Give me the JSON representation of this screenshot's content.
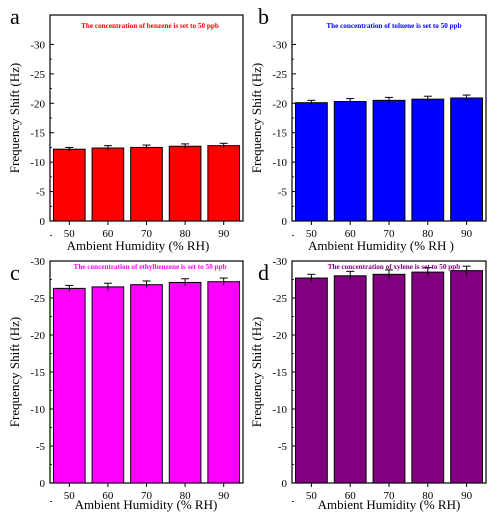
{
  "figure": {
    "panels": [
      {
        "letter": "a",
        "annotation": "The concentration of benzene is set to 50 ppb",
        "color": "#ff0000"
      },
      {
        "letter": "b",
        "annotation": "The concentration of toluene is set to 50 ppb",
        "color": "#0000ff"
      },
      {
        "letter": "c",
        "annotation": "The concentration of ethylbenzene is set to 50 ppb",
        "color": "#ff00ff"
      },
      {
        "letter": "d",
        "annotation": "The concentration of xylene is set to 50 ppb",
        "color": "#800080"
      }
    ]
  },
  "chart_data": [
    {
      "type": "bar",
      "panel": "a",
      "title": "",
      "annotation": "The concentration of benzene is set to 50 ppb",
      "xlabel": "Ambient Humidity (% RH)",
      "ylabel": "Frequency Shift (Hz)",
      "categories": [
        "50",
        "60",
        "70",
        "80",
        "90"
      ],
      "values": [
        -12.2,
        -12.4,
        -12.5,
        -12.7,
        -12.8
      ],
      "errors": [
        0.3,
        0.4,
        0.4,
        0.4,
        0.4
      ],
      "ylim": [
        0,
        -35
      ],
      "y_axis_inverted": true,
      "yticks": [
        0,
        -5,
        -10,
        -15,
        -20,
        -25,
        -30
      ],
      "ytick_labels": [
        "0",
        "-5",
        "-10",
        "-15",
        "-20",
        "-25",
        "-30"
      ],
      "bar_color": "#ff0000",
      "annotation_color": "#ff0000"
    },
    {
      "type": "bar",
      "panel": "b",
      "title": "",
      "annotation": "The concentration of toluene is set to 50 ppb",
      "xlabel": "Ambient Humidity (% RH )",
      "ylabel": "Frequency Shift (Hz)",
      "categories": [
        "50",
        "60",
        "70",
        "80",
        "90"
      ],
      "values": [
        -20.1,
        -20.3,
        -20.5,
        -20.7,
        -20.9
      ],
      "errors": [
        0.4,
        0.5,
        0.5,
        0.5,
        0.5
      ],
      "ylim": [
        0,
        -35
      ],
      "y_axis_inverted": true,
      "yticks": [
        0,
        -5,
        -10,
        -15,
        -20,
        -25,
        -30
      ],
      "ytick_labels": [
        "0",
        "-5",
        "-10",
        "-15",
        "-20",
        "-25",
        "-30"
      ],
      "bar_color": "#0000ff",
      "annotation_color": "#0000ff"
    },
    {
      "type": "bar",
      "panel": "c",
      "title": "",
      "annotation": "The concentration of ethylbenzene is set to 50 ppb",
      "xlabel": "Ambient Humidity (% RH)",
      "ylabel": "Frequency Shift (Hz)",
      "categories": [
        "50",
        "60",
        "70",
        "80",
        "90"
      ],
      "values": [
        -26.3,
        -26.5,
        -26.8,
        -27.1,
        -27.2
      ],
      "errors": [
        0.4,
        0.5,
        0.5,
        0.5,
        0.5
      ],
      "ylim": [
        0,
        -30
      ],
      "y_axis_inverted": true,
      "yticks": [
        0,
        -5,
        -10,
        -15,
        -20,
        -25,
        -30
      ],
      "ytick_labels": [
        "0",
        "-5",
        "-10",
        "-15",
        "-20",
        "-25",
        "-30"
      ],
      "bar_color": "#ff00ff",
      "annotation_color": "#ff00ff"
    },
    {
      "type": "bar",
      "panel": "d",
      "title": "",
      "annotation": "The concentration of xylene is set to 50 ppb",
      "xlabel": "Ambient Humidity (% RH)",
      "ylabel": "Frequency Shift (Hz)",
      "categories": [
        "50",
        "60",
        "70",
        "80",
        "90"
      ],
      "values": [
        -27.7,
        -28.0,
        -28.2,
        -28.5,
        -28.7
      ],
      "errors": [
        0.5,
        0.6,
        0.6,
        0.6,
        0.6
      ],
      "ylim": [
        0,
        -30
      ],
      "y_axis_inverted": true,
      "yticks": [
        0,
        -5,
        -10,
        -15,
        -20,
        -25,
        -30
      ],
      "ytick_labels": [
        "0",
        "-5",
        "-10",
        "-15",
        "-20",
        "-25",
        "-30"
      ],
      "bar_color": "#800080",
      "annotation_color": "#800080"
    }
  ]
}
